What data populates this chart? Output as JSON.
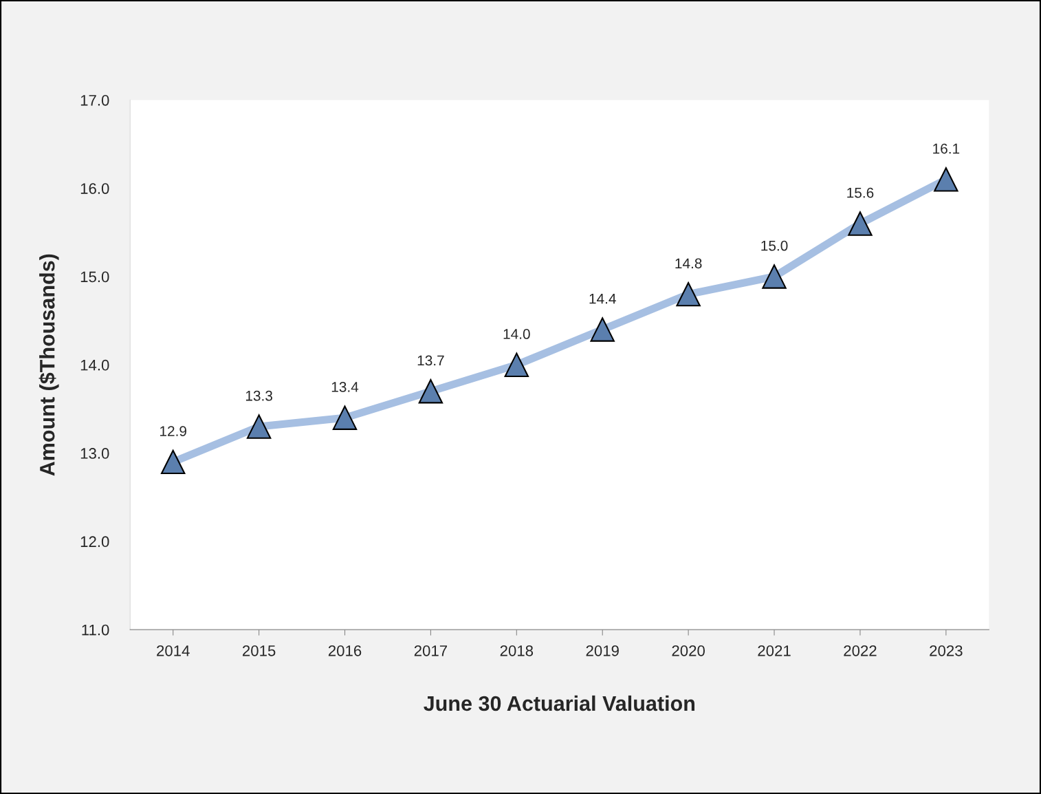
{
  "chart_data": {
    "type": "line",
    "xlabel": "June 30 Actuarial Valuation",
    "ylabel": "Amount ($Thousands)",
    "categories": [
      "2014",
      "2015",
      "2016",
      "2017",
      "2018",
      "2019",
      "2020",
      "2021",
      "2022",
      "2023"
    ],
    "series": [
      {
        "color": "#a6bfe2",
        "values": [
          12.9,
          13.3,
          13.4,
          13.7,
          14.0,
          14.4,
          14.8,
          15.0,
          15.6,
          16.1
        ],
        "value_labels": [
          "12.9",
          "13.3",
          "13.4",
          "13.7",
          "14.0",
          "14.4",
          "14.8",
          "15.0",
          "15.6",
          "16.1"
        ]
      }
    ],
    "ylim": [
      11.0,
      17.0
    ],
    "yticks": [
      {
        "value": 11,
        "label": "11.0"
      },
      {
        "value": 12,
        "label": "12.0"
      },
      {
        "value": 13,
        "label": "13.0"
      },
      {
        "value": 14,
        "label": "14.0"
      },
      {
        "value": 15,
        "label": "15.0"
      },
      {
        "value": 16,
        "label": "16.0"
      },
      {
        "value": 17,
        "label": "17.0"
      }
    ],
    "marker": "triangle",
    "grid": false
  }
}
